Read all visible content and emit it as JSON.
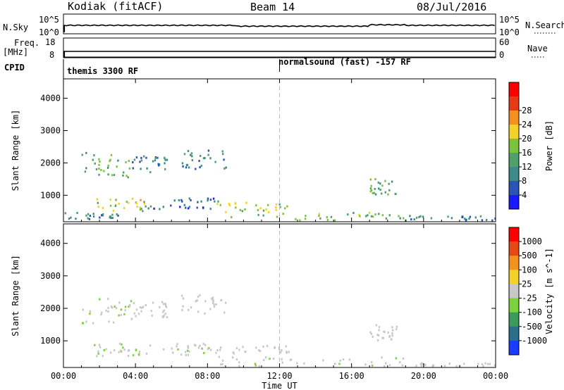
{
  "header": {
    "radar": "Kodiak (fitACF)",
    "beam": "Beam 14",
    "date": "08/Jul/2016"
  },
  "sky_panel": {
    "left_label": "N.Sky",
    "right_label": "N.Search",
    "left_ticks": [
      "10^5",
      "10^0"
    ],
    "right_ticks": [
      "10^5",
      "10^0"
    ]
  },
  "freq_panel": {
    "left_label_1": "Freq.",
    "left_label_2": "[MHz]",
    "right_label": "Nave",
    "left_ticks": [
      "18",
      "8"
    ],
    "right_ticks": [
      "60",
      "0"
    ]
  },
  "cpid": {
    "label": "CPID",
    "segments": [
      {
        "text": "themis 3300 RF",
        "start_hour": 0
      },
      {
        "text": "normalsound (fast) -157 RF",
        "start_hour": 12
      }
    ]
  },
  "chart_data": [
    {
      "type": "heatmap",
      "panel": "power",
      "ylabel": "Slant Range [km]",
      "xlabel": "Time UT",
      "x_ticks": [
        "00:00",
        "04:00",
        "08:00",
        "12:00",
        "16:00",
        "20:00",
        "00:00"
      ],
      "x_range_hours": [
        0,
        24
      ],
      "y_ticks": [
        1000,
        2000,
        3000,
        4000
      ],
      "ylim": [
        180,
        4600
      ],
      "colorbar": {
        "label": "Power [dB]",
        "ticks": [
          "4",
          "8",
          "12",
          "16",
          "20",
          "24",
          "28"
        ],
        "range": [
          0,
          30
        ],
        "colors": [
          "#1a1aff",
          "#2a55b5",
          "#3c8a8a",
          "#4fa06a",
          "#7cc23c",
          "#f2d22a",
          "#f4901e",
          "#e63a14",
          "#ff0000"
        ]
      },
      "echo_regions": [
        {
          "t0": 1.0,
          "t1": 3.8,
          "r0": 1500,
          "r1": 2300,
          "level": 12
        },
        {
          "t0": 3.8,
          "t1": 5.8,
          "r0": 1700,
          "r1": 2200,
          "level": 8
        },
        {
          "t0": 6.5,
          "t1": 9.0,
          "r0": 1800,
          "r1": 2400,
          "level": 8
        },
        {
          "t0": 1.5,
          "t1": 4.6,
          "r0": 500,
          "r1": 900,
          "level": 16
        },
        {
          "t0": 4.5,
          "t1": 8.5,
          "r0": 550,
          "r1": 900,
          "level": 6
        },
        {
          "t0": 8.5,
          "t1": 12.5,
          "r0": 300,
          "r1": 800,
          "level": 16
        },
        {
          "t0": 12.0,
          "t1": 19.0,
          "r0": 200,
          "r1": 450,
          "level": 14
        },
        {
          "t0": 19.0,
          "t1": 24.0,
          "r0": 200,
          "r1": 350,
          "level": 8
        },
        {
          "t0": 0.0,
          "t1": 3.0,
          "r0": 250,
          "r1": 450,
          "level": 8
        },
        {
          "t0": 17.0,
          "t1": 18.5,
          "r0": 1000,
          "r1": 1500,
          "level": 12
        }
      ]
    },
    {
      "type": "heatmap",
      "panel": "velocity",
      "ylabel": "Slant Range [km]",
      "xlabel": "Time UT",
      "x_ticks": [
        "00:00",
        "04:00",
        "08:00",
        "12:00",
        "16:00",
        "20:00",
        "00:00"
      ],
      "x_range_hours": [
        0,
        24
      ],
      "y_ticks": [
        1000,
        2000,
        3000,
        4000
      ],
      "ylim": [
        180,
        4600
      ],
      "colorbar": {
        "label": "Velocity [m s^-1]",
        "ticks": [
          "1000",
          "500",
          "100",
          "25",
          "-25",
          "-100",
          "-500",
          "-1000"
        ],
        "range": [
          -1000,
          1000
        ],
        "colors": [
          "#1a3cff",
          "#2a6f8a",
          "#3c9a5a",
          "#7cd23c",
          "#c8c8c8",
          "#f2d22a",
          "#f4901e",
          "#e64a14",
          "#ff0000"
        ]
      },
      "echo_regions": [
        {
          "t0": 1.0,
          "t1": 3.8,
          "r0": 1500,
          "r1": 2300,
          "level": 100
        },
        {
          "t0": 3.8,
          "t1": 5.8,
          "r0": 1700,
          "r1": 2200,
          "level": 0
        },
        {
          "t0": 6.5,
          "t1": 9.0,
          "r0": 1800,
          "r1": 2400,
          "level": 0
        },
        {
          "t0": 1.5,
          "t1": 4.6,
          "r0": 500,
          "r1": 900,
          "level": 100
        },
        {
          "t0": 4.5,
          "t1": 8.5,
          "r0": 550,
          "r1": 900,
          "level": 50
        },
        {
          "t0": 8.5,
          "t1": 12.5,
          "r0": 600,
          "r1": 850,
          "level": 0
        },
        {
          "t0": 8.5,
          "t1": 19.0,
          "r0": 200,
          "r1": 500,
          "level": 50
        },
        {
          "t0": 19.0,
          "t1": 24.0,
          "r0": 200,
          "r1": 300,
          "level": 0
        },
        {
          "t0": 17.0,
          "t1": 18.5,
          "r0": 1000,
          "r1": 1500,
          "level": 0
        }
      ]
    }
  ]
}
